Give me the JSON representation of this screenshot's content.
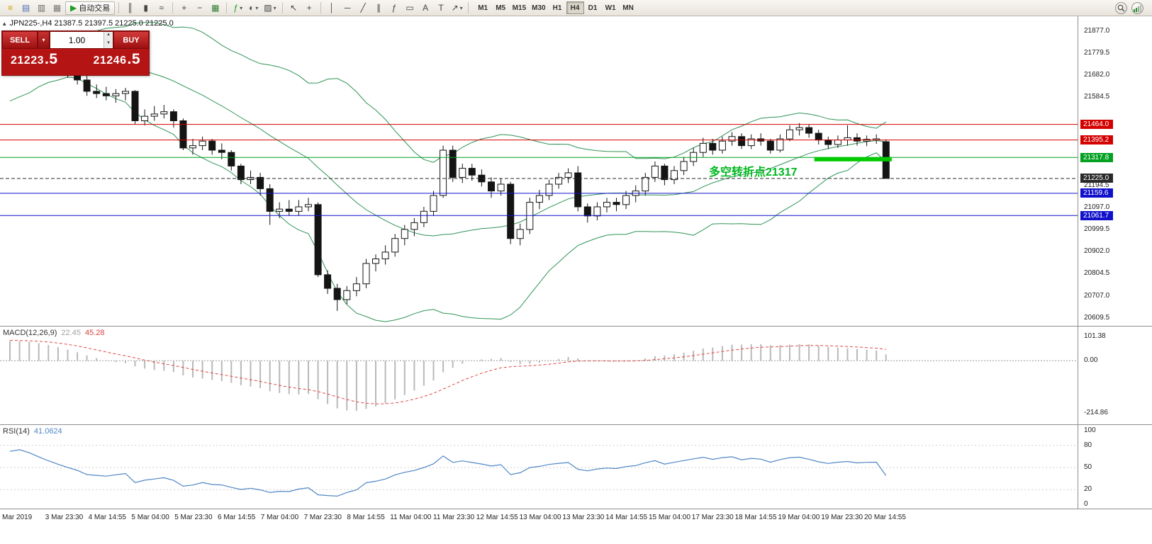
{
  "toolbar": {
    "auto_trading": "自动交易",
    "timeframes": [
      "M1",
      "M5",
      "M15",
      "M30",
      "H1",
      "H4",
      "D1",
      "W1",
      "MN"
    ],
    "active_timeframe": "H4",
    "groups": [
      [
        {
          "name": "new-order-icon",
          "glyph": "≡",
          "color": "#caa200"
        },
        {
          "name": "market-watch-icon",
          "glyph": "▤",
          "color": "#4a6fb5"
        },
        {
          "name": "navigator-icon",
          "glyph": "▥",
          "color": "#666666"
        },
        {
          "name": "terminal-icon",
          "glyph": "▦",
          "color": "#777777"
        },
        {
          "name": "auto-trading-button",
          "glyph": "▶",
          "color": "#1f9e1f",
          "label": "自动交易"
        }
      ],
      [
        {
          "name": "bar-chart-icon",
          "glyph": "║"
        },
        {
          "name": "candlestick-chart-icon",
          "glyph": "▮"
        },
        {
          "name": "line-chart-icon",
          "glyph": "≈"
        }
      ],
      [
        {
          "name": "zoom-in-icon",
          "glyph": "+"
        },
        {
          "name": "zoom-out-icon",
          "glyph": "−"
        },
        {
          "name": "tile-windows-icon",
          "glyph": "▦",
          "color": "#2e7d32"
        }
      ],
      [
        {
          "name": "indicators-icon",
          "glyph": "ƒ",
          "color": "#1f9e1f",
          "dropdown": true
        },
        {
          "name": "periods-icon",
          "glyph": "◐",
          "dropdown": true
        },
        {
          "name": "templates-icon",
          "glyph": "▨",
          "dropdown": true
        }
      ],
      [
        {
          "name": "cursor-icon",
          "glyph": "↖"
        },
        {
          "name": "crosshair-icon",
          "glyph": "+"
        }
      ],
      [
        {
          "name": "vertical-line-icon",
          "glyph": "│"
        },
        {
          "name": "horizontal-line-icon",
          "glyph": "─"
        },
        {
          "name": "trendline-icon",
          "glyph": "╱"
        },
        {
          "name": "equidistant-channel-icon",
          "glyph": "∥"
        },
        {
          "name": "fibonacci-icon",
          "glyph": "ƒ"
        },
        {
          "name": "shapes-icon",
          "glyph": "▭"
        },
        {
          "name": "text-icon",
          "glyph": "A"
        },
        {
          "name": "text-label-icon",
          "glyph": "T"
        },
        {
          "name": "arrows-icon",
          "glyph": "↗",
          "dropdown": true
        }
      ]
    ]
  },
  "chart": {
    "title": "JPN225-,H4  21387.5 21397.5 21225.0 21225.0",
    "trade_panel": {
      "sell_label": "SELL",
      "buy_label": "BUY",
      "volume": "1.00",
      "sell_price": "21223",
      "sell_fraction": ".5",
      "buy_price": "21246",
      "buy_fraction": ".5"
    },
    "annotation": "多空转折点21317",
    "levels": [
      {
        "price": 21464.0,
        "label": "21464.0",
        "color": "#d40000",
        "style": "solid"
      },
      {
        "price": 21395.2,
        "label": "21395.2",
        "color": "#d40000",
        "style": "solid"
      },
      {
        "price": 21317.8,
        "label": "21317.8",
        "color": "#00a020",
        "style": "solid"
      },
      {
        "price": 21225.0,
        "label": "21225.0",
        "color": "#2a2a2a",
        "style": "dash"
      },
      {
        "price": 21159.6,
        "label": "21159.6",
        "color": "#1111cc",
        "style": "solid"
      },
      {
        "price": 21061.7,
        "label": "21061.7",
        "color": "#1111cc",
        "style": "solid"
      }
    ],
    "highlight_segment": {
      "price": 21310,
      "from_candle": 84,
      "to_candle": 91,
      "color": "#00ca00"
    },
    "y_ticks": [
      21877.0,
      21779.5,
      21682.0,
      21584.5,
      21487.0,
      21389.5,
      21292.0,
      21194.5,
      21097.0,
      20999.5,
      20902.0,
      20804.5,
      20707.0,
      20609.5
    ]
  },
  "macd": {
    "name": "MACD(12,26,9)",
    "value_main": "22.45",
    "value_signal": "45.28",
    "y_ticks": [
      "101.38",
      "0.00",
      "-214.86"
    ],
    "y_tick_values": [
      101.38,
      0,
      -214.86
    ]
  },
  "rsi": {
    "name": "RSI(14)",
    "value": "41.0624",
    "y_ticks": [
      "100",
      "80",
      "50",
      "20",
      "0"
    ],
    "y_tick_values": [
      100,
      80,
      50,
      20,
      0
    ],
    "levels": [
      80,
      50,
      20
    ]
  },
  "time_axis": [
    "Mar 2019",
    "3 Mar 23:30",
    "4 Mar 14:55",
    "5 Mar 04:00",
    "5 Mar 23:30",
    "6 Mar 14:55",
    "7 Mar 04:00",
    "7 Mar 23:30",
    "8 Mar 14:55",
    "11 Mar 04:00",
    "11 Mar 23:30",
    "12 Mar 14:55",
    "13 Mar 04:00",
    "13 Mar 23:30",
    "14 Mar 14:55",
    "15 Mar 04:00",
    "17 Mar 23:30",
    "18 Mar 14:55",
    "19 Mar 04:00",
    "19 Mar 23:30",
    "20 Mar 14:55"
  ],
  "chart_data": {
    "type": "candlestick",
    "symbol": "JPN225-",
    "timeframe": "H4",
    "title": "JPN225-,H4",
    "ohlc_display": {
      "open": 21387.5,
      "high": 21397.5,
      "low": 21225.0,
      "close": 21225.0
    },
    "ylim": [
      20590,
      21910
    ],
    "indicators": {
      "bollinger": {
        "period": 20,
        "deviation": 2,
        "color": "#2f9256"
      },
      "macd": {
        "fast": 12,
        "slow": 26,
        "signal": 9,
        "current_main": 22.45,
        "current_signal": 45.28
      },
      "rsi": {
        "period": 14,
        "current": 41.0624
      }
    },
    "warmup_closes": [
      21350,
      21380,
      21410,
      21390,
      21430,
      21460,
      21440,
      21480,
      21510,
      21490,
      21530,
      21560,
      21540,
      21580,
      21610,
      21590,
      21630,
      21660,
      21640,
      21680,
      21710,
      21690,
      21730,
      21760,
      21740,
      21770,
      21790,
      21770,
      21800,
      21820,
      21790,
      21780
    ],
    "candles": [
      [
        21780,
        21820,
        21740,
        21800
      ],
      [
        21800,
        21850,
        21770,
        21830
      ],
      [
        21830,
        21860,
        21780,
        21810
      ],
      [
        21810,
        21840,
        21760,
        21780
      ],
      [
        21780,
        21810,
        21730,
        21750
      ],
      [
        21750,
        21780,
        21700,
        21720
      ],
      [
        21720,
        21750,
        21670,
        21690
      ],
      [
        21690,
        21720,
        21640,
        21660
      ],
      [
        21660,
        21680,
        21590,
        21610
      ],
      [
        21610,
        21640,
        21580,
        21600
      ],
      [
        21600,
        21630,
        21570,
        21590
      ],
      [
        21590,
        21620,
        21560,
        21600
      ],
      [
        21600,
        21625,
        21570,
        21610
      ],
      [
        21610,
        21615,
        21465,
        21480
      ],
      [
        21480,
        21530,
        21460,
        21500
      ],
      [
        21500,
        21545,
        21480,
        21510
      ],
      [
        21510,
        21550,
        21490,
        21520
      ],
      [
        21520,
        21530,
        21450,
        21480
      ],
      [
        21480,
        21490,
        21350,
        21360
      ],
      [
        21360,
        21400,
        21330,
        21370
      ],
      [
        21370,
        21410,
        21350,
        21390
      ],
      [
        21390,
        21400,
        21330,
        21350
      ],
      [
        21350,
        21380,
        21310,
        21340
      ],
      [
        21340,
        21350,
        21260,
        21280
      ],
      [
        21280,
        21290,
        21200,
        21220
      ],
      [
        21220,
        21260,
        21200,
        21230
      ],
      [
        21230,
        21250,
        21150,
        21180
      ],
      [
        21180,
        21200,
        21020,
        21080
      ],
      [
        21080,
        21120,
        21050,
        21090
      ],
      [
        21090,
        21130,
        21060,
        21080
      ],
      [
        21080,
        21130,
        21060,
        21100
      ],
      [
        21100,
        21140,
        21080,
        21110
      ],
      [
        21110,
        21120,
        20790,
        20800
      ],
      [
        20800,
        20820,
        20715,
        20740
      ],
      [
        20740,
        20760,
        20640,
        20690
      ],
      [
        20690,
        20750,
        20670,
        20730
      ],
      [
        20730,
        20790,
        20705,
        20760
      ],
      [
        20760,
        20870,
        20740,
        20850
      ],
      [
        20850,
        20890,
        20815,
        20870
      ],
      [
        20870,
        20930,
        20845,
        20900
      ],
      [
        20900,
        20980,
        20880,
        20960
      ],
      [
        20960,
        21020,
        20930,
        21000
      ],
      [
        21000,
        21050,
        20970,
        21030
      ],
      [
        21030,
        21100,
        21010,
        21080
      ],
      [
        21080,
        21170,
        21060,
        21150
      ],
      [
        21150,
        21370,
        21140,
        21350
      ],
      [
        21350,
        21370,
        21210,
        21230
      ],
      [
        21230,
        21290,
        21205,
        21270
      ],
      [
        21270,
        21290,
        21215,
        21240
      ],
      [
        21240,
        21265,
        21190,
        21210
      ],
      [
        21210,
        21230,
        21140,
        21170
      ],
      [
        21170,
        21225,
        21150,
        21200
      ],
      [
        21200,
        21210,
        20935,
        20960
      ],
      [
        20960,
        21025,
        20930,
        21000
      ],
      [
        21000,
        21140,
        20980,
        21120
      ],
      [
        21120,
        21175,
        21090,
        21150
      ],
      [
        21150,
        21220,
        21130,
        21200
      ],
      [
        21200,
        21250,
        21180,
        21230
      ],
      [
        21230,
        21270,
        21205,
        21250
      ],
      [
        21250,
        21280,
        21080,
        21100
      ],
      [
        21100,
        21115,
        21030,
        21060
      ],
      [
        21060,
        21120,
        21040,
        21100
      ],
      [
        21100,
        21140,
        21075,
        21120
      ],
      [
        21120,
        21140,
        21080,
        21110
      ],
      [
        21110,
        21170,
        21090,
        21150
      ],
      [
        21150,
        21195,
        21120,
        21170
      ],
      [
        21170,
        21250,
        21150,
        21230
      ],
      [
        21230,
        21300,
        21210,
        21280
      ],
      [
        21280,
        21290,
        21195,
        21220
      ],
      [
        21220,
        21280,
        21200,
        21260
      ],
      [
        21260,
        21320,
        21240,
        21300
      ],
      [
        21300,
        21360,
        21280,
        21340
      ],
      [
        21340,
        21405,
        21320,
        21380
      ],
      [
        21380,
        21400,
        21330,
        21350
      ],
      [
        21350,
        21410,
        21335,
        21390
      ],
      [
        21390,
        21430,
        21370,
        21410
      ],
      [
        21410,
        21425,
        21355,
        21370
      ],
      [
        21370,
        21420,
        21355,
        21400
      ],
      [
        21400,
        21425,
        21370,
        21390
      ],
      [
        21390,
        21400,
        21335,
        21350
      ],
      [
        21350,
        21420,
        21340,
        21400
      ],
      [
        21400,
        21460,
        21390,
        21440
      ],
      [
        21440,
        21470,
        21415,
        21450
      ],
      [
        21450,
        21465,
        21405,
        21425
      ],
      [
        21425,
        21440,
        21375,
        21395
      ],
      [
        21395,
        21410,
        21355,
        21375
      ],
      [
        21375,
        21415,
        21360,
        21395
      ],
      [
        21395,
        21460,
        21370,
        21405
      ],
      [
        21405,
        21425,
        21370,
        21390
      ],
      [
        21390,
        21415,
        21368,
        21398
      ],
      [
        21398,
        21420,
        21378,
        21400
      ],
      [
        21387.5,
        21397.5,
        21225.0,
        21225.0
      ]
    ]
  }
}
